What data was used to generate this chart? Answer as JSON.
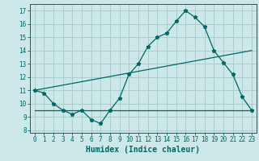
{
  "xlabel": "Humidex (Indice chaleur)",
  "bg_color": "#cce8e8",
  "grid_color": "#aacccc",
  "line_color": "#006666",
  "xlim": [
    -0.5,
    23.5
  ],
  "ylim": [
    7.8,
    17.5
  ],
  "xticks": [
    0,
    1,
    2,
    3,
    4,
    5,
    6,
    7,
    8,
    9,
    10,
    11,
    12,
    13,
    14,
    15,
    16,
    17,
    18,
    19,
    20,
    21,
    22,
    23
  ],
  "yticks": [
    8,
    9,
    10,
    11,
    12,
    13,
    14,
    15,
    16,
    17
  ],
  "main_x": [
    0,
    1,
    2,
    3,
    4,
    5,
    6,
    7,
    8,
    9,
    10,
    11,
    12,
    13,
    14,
    15,
    16,
    17,
    18,
    19,
    20,
    21,
    22,
    23
  ],
  "main_y": [
    11.0,
    10.8,
    10.0,
    9.5,
    9.2,
    9.5,
    8.8,
    8.5,
    9.5,
    10.4,
    12.2,
    13.0,
    14.3,
    15.0,
    15.3,
    16.2,
    17.0,
    16.5,
    15.8,
    14.0,
    13.1,
    12.2,
    10.5,
    9.5
  ],
  "upper_line_x": [
    0,
    23
  ],
  "upper_line_y": [
    11.0,
    14.0
  ],
  "lower_line_x": [
    0,
    23
  ],
  "lower_line_y": [
    9.5,
    9.5
  ],
  "tick_fontsize": 5.5,
  "label_fontsize": 7.0
}
